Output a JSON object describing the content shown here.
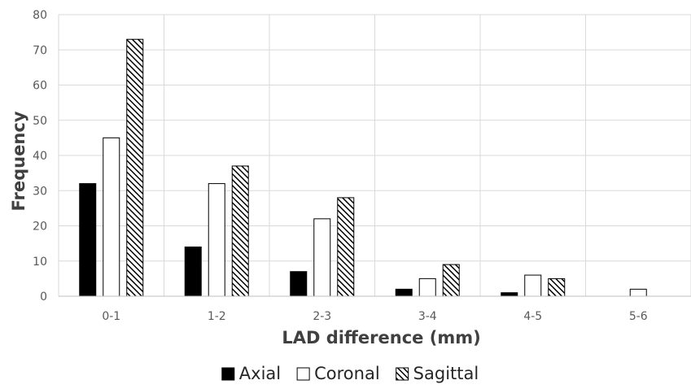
{
  "chart_data": {
    "type": "bar",
    "title": "",
    "xlabel": "LAD difference (mm)",
    "ylabel": "Frequency",
    "categories": [
      "0-1",
      "1-2",
      "2-3",
      "3-4",
      "4-5",
      "5-6"
    ],
    "ylim": [
      0,
      80
    ],
    "yticks": [
      0,
      10,
      20,
      30,
      40,
      50,
      60,
      70,
      80
    ],
    "grid": true,
    "legend_position": "bottom",
    "series": [
      {
        "name": "Axial",
        "values": [
          32,
          14,
          7,
          2,
          1,
          0
        ],
        "fill": "solid",
        "color": "#000000"
      },
      {
        "name": "Coronal",
        "values": [
          45,
          32,
          22,
          5,
          6,
          2
        ],
        "fill": "none",
        "color": "#000000"
      },
      {
        "name": "Sagittal",
        "values": [
          73,
          37,
          28,
          9,
          5,
          0
        ],
        "fill": "hatch",
        "color": "#000000"
      }
    ],
    "colors": {
      "grid": "#d9d9d9",
      "axis": "#bfbfbf",
      "text": "#595959"
    }
  }
}
